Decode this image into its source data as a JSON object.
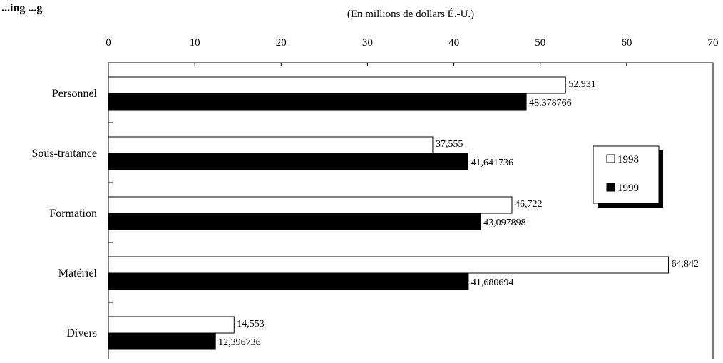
{
  "partial_title": "...ing  ...g",
  "chart_data": {
    "type": "bar",
    "orientation": "horizontal",
    "unit_label": "(En millions de dollars É.-U.)",
    "xlim": [
      0,
      70
    ],
    "x_ticks": [
      "0",
      "10",
      "20",
      "30",
      "40",
      "50",
      "60",
      "70"
    ],
    "categories": [
      "Personnel",
      "Sous-traitance",
      "Formation",
      "Matériel",
      "Divers"
    ],
    "series": [
      {
        "name": "1998",
        "color": "#ffffff",
        "values": [
          52.931,
          37.555,
          46.722,
          64.842,
          14.553
        ],
        "labels": [
          "52,931",
          "37,555",
          "46,722",
          "64,842",
          "14,553"
        ]
      },
      {
        "name": "1999",
        "color": "#000000",
        "values": [
          48.378766,
          41.641736,
          43.097898,
          41.680694,
          12.396736
        ],
        "labels": [
          "48,378766",
          "41,641736",
          "43,097898",
          "41,680694",
          "12,396736"
        ]
      }
    ],
    "grid": false,
    "legend_position": "right"
  }
}
